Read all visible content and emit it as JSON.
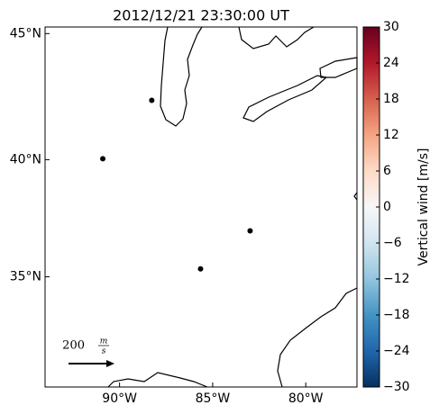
{
  "chart_data": {
    "type": "map",
    "projection": "mercator",
    "title": "2012/12/21 23:30:00 UT",
    "xlim": [
      -94,
      -77.25
    ],
    "ylim": [
      30,
      45.25
    ],
    "xticks": [
      {
        "value": -90,
        "label": "90°W"
      },
      {
        "value": -85,
        "label": "85°W"
      },
      {
        "value": -80,
        "label": "80°W"
      }
    ],
    "yticks": [
      {
        "value": 45,
        "label": "45°N"
      },
      {
        "value": 40,
        "label": "40°N"
      },
      {
        "value": 35,
        "label": "35°N"
      }
    ],
    "points": {
      "color": "#000000",
      "x": [
        -88.27,
        -90.9,
        -82.99,
        -85.65
      ],
      "y": [
        42.4,
        40.04,
        37.0,
        35.35
      ]
    },
    "vector_key": {
      "value": "200",
      "unit_numerator": "m",
      "unit_denominator": "s"
    },
    "colorbar": {
      "label": "Vertical wind [m/s]",
      "colormap": "RdBu_r",
      "clim": [
        -30,
        30
      ],
      "ticks": [
        {
          "value": -30,
          "label": "−30"
        },
        {
          "value": -24,
          "label": "−24"
        },
        {
          "value": -18,
          "label": "−18"
        },
        {
          "value": -12,
          "label": "−12"
        },
        {
          "value": -6,
          "label": "−6"
        },
        0,
        6,
        12,
        18,
        24,
        30
      ]
    }
  }
}
